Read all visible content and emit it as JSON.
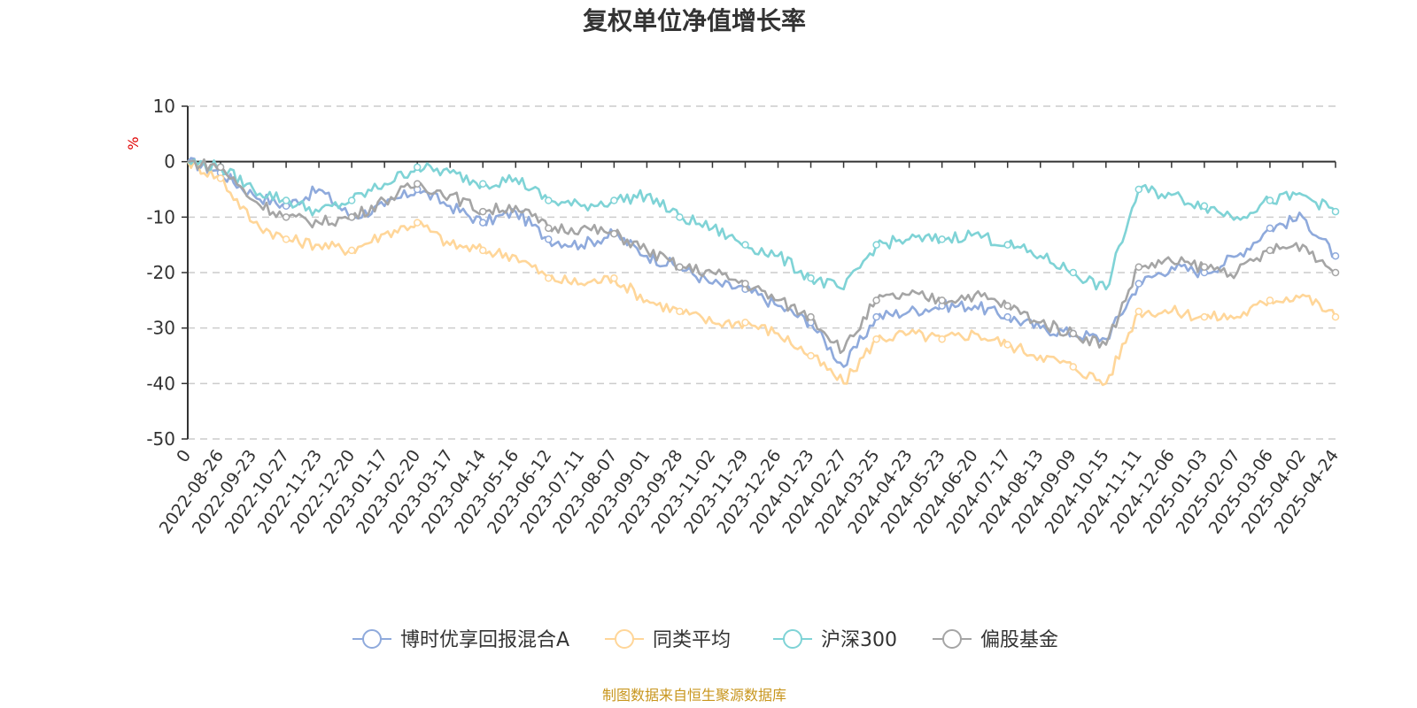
{
  "chart_data": {
    "type": "line",
    "title": "复权单位净值增长率",
    "ylabel": "%",
    "ylim": [
      -50,
      10
    ],
    "yticks": [
      10,
      0,
      -10,
      -20,
      -30,
      -40,
      -50
    ],
    "grid": true,
    "legend_position": "bottom",
    "x": [
      "0",
      "2022-08-26",
      "2022-09-23",
      "2022-10-27",
      "2022-11-23",
      "2022-12-20",
      "2023-01-17",
      "2023-02-20",
      "2023-03-17",
      "2023-04-14",
      "2023-05-16",
      "2023-06-12",
      "2023-07-11",
      "2023-08-07",
      "2023-09-01",
      "2023-09-28",
      "2023-11-02",
      "2023-11-29",
      "2023-12-26",
      "2024-01-23",
      "2024-02-27",
      "2024-03-25",
      "2024-04-23",
      "2024-05-23",
      "2024-06-20",
      "2024-07-17",
      "2024-08-13",
      "2024-09-09",
      "2024-10-15",
      "2024-11-11",
      "2024-12-06",
      "2025-01-03",
      "2025-02-07",
      "2025-03-06",
      "2025-04-02",
      "2025-04-24"
    ],
    "series": [
      {
        "name": "博时优享回报混合A",
        "color": "#8faadc",
        "values": [
          0,
          -2,
          -6,
          -8,
          -5,
          -10,
          -8,
          -5,
          -8,
          -11,
          -9,
          -14,
          -15,
          -13,
          -17,
          -19,
          -22,
          -23,
          -26,
          -29,
          -37,
          -28,
          -27,
          -26,
          -26,
          -28,
          -30,
          -31,
          -32,
          -22,
          -19,
          -20,
          -17,
          -12,
          -10,
          -17
        ]
      },
      {
        "name": "同类平均",
        "color": "#ffd699",
        "values": [
          0,
          -3,
          -11,
          -14,
          -15,
          -16,
          -13,
          -11,
          -15,
          -16,
          -17,
          -21,
          -22,
          -21,
          -25,
          -27,
          -29,
          -29,
          -31,
          -35,
          -40,
          -32,
          -31,
          -32,
          -31,
          -33,
          -35,
          -37,
          -40,
          -27,
          -27,
          -28,
          -28,
          -25,
          -24,
          -28
        ]
      },
      {
        "name": "沪深300",
        "color": "#7fd3d6",
        "values": [
          0,
          -1,
          -5,
          -7,
          -9,
          -7,
          -4,
          -1,
          -2,
          -4,
          -3,
          -7,
          -8,
          -7,
          -6,
          -10,
          -12,
          -15,
          -17,
          -21,
          -23,
          -15,
          -14,
          -14,
          -13,
          -15,
          -17,
          -20,
          -23,
          -5,
          -6,
          -8,
          -10,
          -7,
          -6,
          -9
        ]
      },
      {
        "name": "偏股基金",
        "color": "#a5a5a5",
        "values": [
          0,
          -1,
          -7,
          -10,
          -11,
          -10,
          -7,
          -4,
          -6,
          -9,
          -8,
          -12,
          -12,
          -13,
          -16,
          -19,
          -20,
          -22,
          -25,
          -28,
          -34,
          -25,
          -24,
          -25,
          -24,
          -26,
          -29,
          -31,
          -33,
          -19,
          -18,
          -19,
          -20,
          -16,
          -15,
          -20
        ]
      }
    ]
  },
  "source": "制图数据来自恒生聚源数据库"
}
